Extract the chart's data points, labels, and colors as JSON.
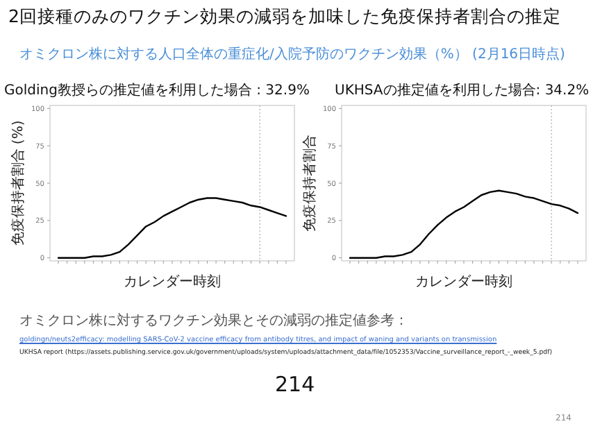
{
  "chart_data": [
    {
      "type": "other",
      "title": "2回接種のみのワクチン効果の減弱を加味した免疫保持者割合の推定",
      "subtitle": "オミクロン株に対する人口全体の重症化/入院予防のワクチン効果（%） (2月16日時点)",
      "annotations": [
        "オミクロン株に対するワクチン効果とその減弱の推定値参考：",
        "goldingn/neuts2efficacy: modelling SARS-CoV-2 vaccine efficacy from antibody titres, and impact of waning and variants on transmission",
        "UKHSA report (https://assets.publishing.service.gov.uk/government/uploads/system/uploads/attachment_data/file/1052353/Vaccine_surveillance_report_-_week_5.pdf)",
        "214",
        "214"
      ]
    },
    {
      "type": "line",
      "title": "Golding教授らの推定値を利用した場合 : 32.9%",
      "xlabel": "カレンダー時刻",
      "ylabel": "免疫保持者割合 (%)",
      "categories": [
        null,
        null,
        null,
        null,
        null,
        null,
        null,
        null,
        null,
        null,
        null,
        null,
        null,
        null,
        null,
        null,
        null,
        null,
        null,
        null,
        null,
        null,
        null,
        null,
        null,
        null,
        null
      ],
      "ylim": [
        -2,
        102
      ],
      "yticks": [
        0,
        25,
        50,
        75,
        100
      ],
      "grid": false,
      "series": [
        {
          "color": "#000000",
          "values": [
            0,
            0,
            0,
            0,
            1,
            1,
            2,
            4,
            9,
            15,
            21,
            24,
            28,
            31,
            34,
            37,
            39,
            40,
            40,
            39,
            38,
            37,
            35,
            34,
            32,
            30,
            28
          ]
        }
      ]
    },
    {
      "type": "line",
      "title": "UKHSAの推定値を利用した場合: 34.2%",
      "xlabel": "カレンダー時刻",
      "ylabel": "免疫保持者割合",
      "categories": [
        null,
        null,
        null,
        null,
        null,
        null,
        null,
        null,
        null,
        null,
        null,
        null,
        null,
        null,
        null,
        null,
        null,
        null,
        null,
        null,
        null,
        null,
        null,
        null,
        null,
        null,
        null
      ],
      "ylim": [
        -2,
        102
      ],
      "yticks": [
        0,
        25,
        50,
        75,
        100
      ],
      "grid": false,
      "series": [
        {
          "color": "#000000",
          "values": [
            0,
            0,
            0,
            0,
            1,
            1,
            2,
            4,
            9,
            16,
            22,
            27,
            31,
            34,
            38,
            42,
            44,
            45,
            44,
            43,
            41,
            40,
            38,
            36,
            35,
            33,
            30
          ]
        }
      ]
    }
  ]
}
